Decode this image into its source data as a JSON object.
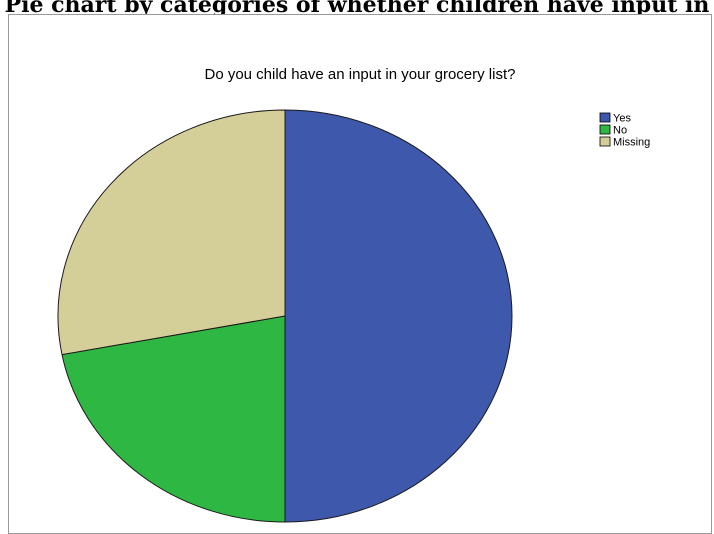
{
  "page": {
    "top_caption": "Pie chart by categories of whether children have input in grocery list"
  },
  "chart_data": {
    "type": "pie",
    "title": "Do you child have an input in your grocery list?",
    "legend_position": "top-right",
    "start_angle_deg": 0,
    "slices": [
      {
        "label": "Yes",
        "value": 50.0,
        "color": "#3e58ac"
      },
      {
        "label": "No",
        "value": 22.0,
        "color": "#2fb744"
      },
      {
        "label": "Missing",
        "value": 28.0,
        "color": "#d4ce99"
      }
    ]
  }
}
